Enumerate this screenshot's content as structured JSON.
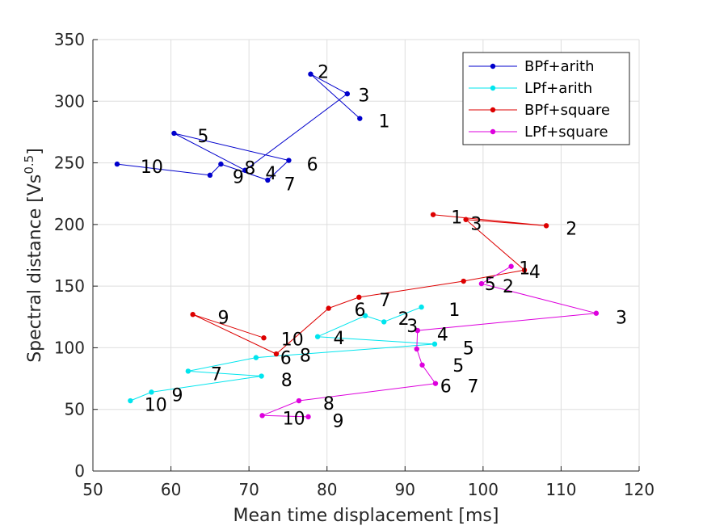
{
  "chart_data": {
    "type": "line",
    "title": "",
    "xlabel": "Mean time displacement [ms]",
    "ylabel_main": "Spectral distance [Vs",
    "ylabel_sup": "0.5",
    "ylabel_end": "]",
    "xlim": [
      50,
      120
    ],
    "ylim": [
      0,
      350
    ],
    "xticks": [
      50,
      60,
      70,
      80,
      90,
      100,
      110,
      120
    ],
    "yticks": [
      0,
      50,
      100,
      150,
      200,
      250,
      300,
      350
    ],
    "grid": true,
    "legend_position": "top-right",
    "series": [
      {
        "name": "BPf+arith",
        "color": "#0000cc",
        "points": [
          {
            "x": 84.2,
            "y": 286,
            "label": "1"
          },
          {
            "x": 77.9,
            "y": 322,
            "label": "2"
          },
          {
            "x": 82.6,
            "y": 306,
            "label": "3"
          },
          {
            "x": 69.5,
            "y": 244,
            "label": "4"
          },
          {
            "x": 60.4,
            "y": 274,
            "label": "5"
          },
          {
            "x": 75.1,
            "y": 252,
            "label": "6"
          },
          {
            "x": 72.4,
            "y": 236,
            "label": "7"
          },
          {
            "x": 66.4,
            "y": 249,
            "label": "8"
          },
          {
            "x": 65.0,
            "y": 240,
            "label": "9"
          },
          {
            "x": 53.1,
            "y": 249,
            "label": "10"
          }
        ]
      },
      {
        "name": "LPf+arith",
        "color": "#00e5ee",
        "points": [
          {
            "x": 92.1,
            "y": 133,
            "label": "1"
          },
          {
            "x": 87.3,
            "y": 121,
            "label": "2"
          },
          {
            "x": 84.9,
            "y": 126,
            "label": "3"
          },
          {
            "x": 78.8,
            "y": 109,
            "label": "4"
          },
          {
            "x": 93.8,
            "y": 103,
            "label": "5"
          },
          {
            "x": 70.9,
            "y": 92,
            "label": "6"
          },
          {
            "x": 62.2,
            "y": 81,
            "label": "7"
          },
          {
            "x": 71.6,
            "y": 77,
            "label": "8"
          },
          {
            "x": 57.5,
            "y": 64,
            "label": "9"
          },
          {
            "x": 54.8,
            "y": 57,
            "label": "10"
          }
        ]
      },
      {
        "name": "BPf+square",
        "color": "#dd0000",
        "points": [
          {
            "x": 93.6,
            "y": 208,
            "label": "1"
          },
          {
            "x": 108.1,
            "y": 199,
            "label": "2"
          },
          {
            "x": 97.8,
            "y": 204,
            "label": "3"
          },
          {
            "x": 105.3,
            "y": 163,
            "label": "4"
          },
          {
            "x": 97.5,
            "y": 154,
            "label": "5"
          },
          {
            "x": 84.1,
            "y": 141,
            "label": "6"
          },
          {
            "x": 80.2,
            "y": 132,
            "label": "7"
          },
          {
            "x": 73.5,
            "y": 95,
            "label": "8"
          },
          {
            "x": 62.8,
            "y": 127,
            "label": "9"
          },
          {
            "x": 71.9,
            "y": 108,
            "label": "10"
          }
        ]
      },
      {
        "name": "LPf+square",
        "color": "#dd00dd",
        "points": [
          {
            "x": 103.6,
            "y": 166,
            "label": "1"
          },
          {
            "x": 99.8,
            "y": 152,
            "label": "2"
          },
          {
            "x": 114.5,
            "y": 128,
            "label": "3"
          },
          {
            "x": 91.6,
            "y": 114,
            "label": "4"
          },
          {
            "x": 91.5,
            "y": 99,
            "label": "5"
          },
          {
            "x": 92.2,
            "y": 86,
            "label": "6"
          },
          {
            "x": 93.9,
            "y": 71,
            "label": "7"
          },
          {
            "x": 76.4,
            "y": 57,
            "label": "8"
          },
          {
            "x": 71.7,
            "y": 45,
            "label": "9"
          },
          {
            "x": 77.6,
            "y": 44,
            "label": "10"
          }
        ]
      }
    ],
    "annotations": [
      {
        "text": "2",
        "x": 78.8,
        "y": 324
      },
      {
        "text": "3",
        "x": 84.0,
        "y": 305
      },
      {
        "text": "1",
        "x": 86.6,
        "y": 284
      },
      {
        "text": "5",
        "x": 63.4,
        "y": 272
      },
      {
        "text": "6",
        "x": 77.4,
        "y": 249
      },
      {
        "text": "10",
        "x": 56.1,
        "y": 247
      },
      {
        "text": "8",
        "x": 69.4,
        "y": 246
      },
      {
        "text": "4",
        "x": 72.1,
        "y": 242
      },
      {
        "text": "9",
        "x": 67.9,
        "y": 239
      },
      {
        "text": "7",
        "x": 74.5,
        "y": 233
      },
      {
        "text": "1",
        "x": 95.9,
        "y": 206
      },
      {
        "text": "3",
        "x": 98.4,
        "y": 201
      },
      {
        "text": "2",
        "x": 110.6,
        "y": 197
      },
      {
        "text": "1",
        "x": 104.6,
        "y": 165
      },
      {
        "text": "4",
        "x": 105.9,
        "y": 162
      },
      {
        "text": "5",
        "x": 100.2,
        "y": 152
      },
      {
        "text": "2",
        "x": 102.5,
        "y": 150
      },
      {
        "text": "7",
        "x": 86.7,
        "y": 139
      },
      {
        "text": "1",
        "x": 95.6,
        "y": 131
      },
      {
        "text": "6",
        "x": 83.5,
        "y": 131
      },
      {
        "text": "9",
        "x": 66.0,
        "y": 125
      },
      {
        "text": "2",
        "x": 89.1,
        "y": 124
      },
      {
        "text": "3",
        "x": 117.0,
        "y": 125
      },
      {
        "text": "3",
        "x": 90.2,
        "y": 118
      },
      {
        "text": "4",
        "x": 94.1,
        "y": 111
      },
      {
        "text": "10",
        "x": 74.1,
        "y": 107
      },
      {
        "text": "4",
        "x": 80.8,
        "y": 108
      },
      {
        "text": "5",
        "x": 97.4,
        "y": 100
      },
      {
        "text": "8",
        "x": 76.5,
        "y": 94
      },
      {
        "text": "6",
        "x": 74.0,
        "y": 92
      },
      {
        "text": "5",
        "x": 96.1,
        "y": 86
      },
      {
        "text": "7",
        "x": 65.1,
        "y": 79
      },
      {
        "text": "8",
        "x": 74.1,
        "y": 74
      },
      {
        "text": "6",
        "x": 94.5,
        "y": 69
      },
      {
        "text": "7",
        "x": 98.0,
        "y": 69
      },
      {
        "text": "9",
        "x": 60.1,
        "y": 62
      },
      {
        "text": "10",
        "x": 56.6,
        "y": 54
      },
      {
        "text": "8",
        "x": 79.5,
        "y": 55
      },
      {
        "text": "10",
        "x": 74.3,
        "y": 43
      },
      {
        "text": "9",
        "x": 80.7,
        "y": 41
      }
    ]
  }
}
